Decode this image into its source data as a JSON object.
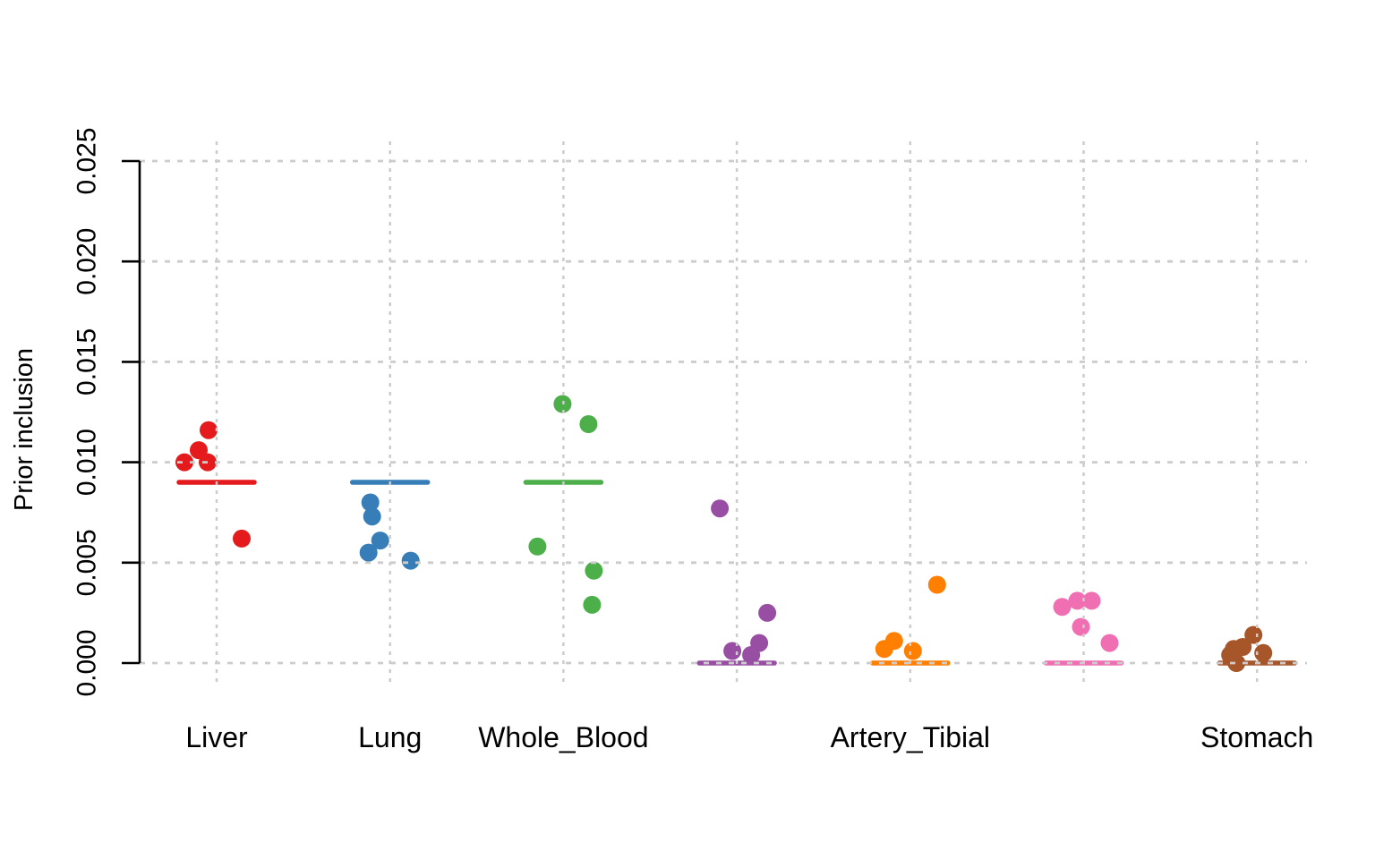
{
  "chart_data": {
    "type": "scatter",
    "title": "",
    "xlabel": "",
    "ylabel": "Prior inclusion",
    "ylim": [
      0.0,
      0.025
    ],
    "ytick_labels": [
      "0.000",
      "0.005",
      "0.010",
      "0.015",
      "0.020",
      "0.025"
    ],
    "grid": "dotted",
    "grid_color": "#cccccc",
    "axis_color": "#000000",
    "legend": "none",
    "groups": [
      {
        "label": "Liver",
        "color": "#e41a1c",
        "mean": 0.009,
        "points": [
          {
            "v": 0.01,
            "dx": -36
          },
          {
            "v": 0.01,
            "dx": -10
          },
          {
            "v": 0.0106,
            "dx": -20
          },
          {
            "v": 0.0116,
            "dx": -9
          },
          {
            "v": 0.0062,
            "dx": 28
          }
        ]
      },
      {
        "label": "Lung",
        "color": "#377eb8",
        "mean": 0.009,
        "points": [
          {
            "v": 0.008,
            "dx": -22
          },
          {
            "v": 0.0073,
            "dx": -20
          },
          {
            "v": 0.0061,
            "dx": -11
          },
          {
            "v": 0.0055,
            "dx": -24
          },
          {
            "v": 0.0051,
            "dx": 23
          }
        ]
      },
      {
        "label": "Whole_Blood",
        "color": "#4daf4a",
        "mean": 0.009,
        "points": [
          {
            "v": 0.0129,
            "dx": -1
          },
          {
            "v": 0.0119,
            "dx": 28
          },
          {
            "v": 0.0058,
            "dx": -29
          },
          {
            "v": 0.0046,
            "dx": 34
          },
          {
            "v": 0.0029,
            "dx": 32
          }
        ]
      },
      {
        "label": "",
        "color": "#984ea3",
        "mean": 0.0,
        "points": [
          {
            "v": 0.0077,
            "dx": -19
          },
          {
            "v": 0.0025,
            "dx": 34
          },
          {
            "v": 0.001,
            "dx": 25
          },
          {
            "v": 0.0006,
            "dx": -5
          },
          {
            "v": 0.0004,
            "dx": 16
          }
        ]
      },
      {
        "label": "Artery_Tibial",
        "color": "#ff7f00",
        "mean": 0.0,
        "points": [
          {
            "v": 0.0007,
            "dx": -29
          },
          {
            "v": 0.0011,
            "dx": -18
          },
          {
            "v": 0.0006,
            "dx": 3
          },
          {
            "v": 0.0039,
            "dx": 30
          }
        ]
      },
      {
        "label": "",
        "color": "#f06eb2",
        "mean": 0.0,
        "points": [
          {
            "v": 0.0028,
            "dx": -24
          },
          {
            "v": 0.0031,
            "dx": -7
          },
          {
            "v": 0.0031,
            "dx": 9
          },
          {
            "v": 0.0018,
            "dx": -3
          },
          {
            "v": 0.001,
            "dx": 29
          }
        ]
      },
      {
        "label": "Stomach",
        "color": "#a65628",
        "mean": 0.0,
        "points": [
          {
            "v": 0.0,
            "dx": -23
          },
          {
            "v": 0.0004,
            "dx": -30
          },
          {
            "v": 0.0007,
            "dx": -26
          },
          {
            "v": 0.0008,
            "dx": -16
          },
          {
            "v": 0.0014,
            "dx": -4
          },
          {
            "v": 0.0005,
            "dx": 7
          }
        ]
      }
    ]
  }
}
